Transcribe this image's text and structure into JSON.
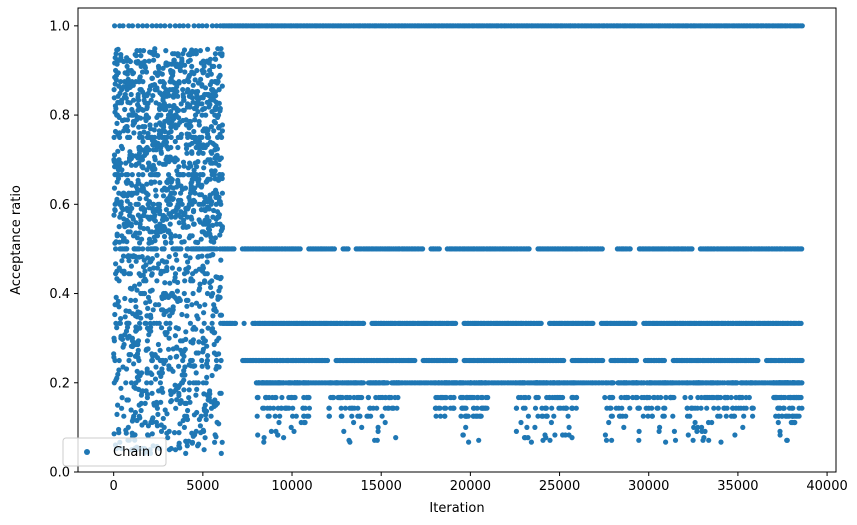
{
  "chart_data": {
    "type": "scatter",
    "xlabel": "Iteration",
    "ylabel": "Acceptance ratio",
    "xlim": [
      -2000,
      40500
    ],
    "ylim": [
      0.0,
      1.04
    ],
    "x_ticks": [
      0,
      5000,
      10000,
      15000,
      20000,
      25000,
      30000,
      35000,
      40000
    ],
    "x_tick_labels": [
      "0",
      "5000",
      "10000",
      "15000",
      "20000",
      "25000",
      "30000",
      "35000",
      "40000"
    ],
    "y_ticks": [
      0.0,
      0.2,
      0.4,
      0.6,
      0.8,
      1.0
    ],
    "y_tick_labels": [
      "0.0",
      "0.2",
      "0.4",
      "0.6",
      "0.8",
      "1.0"
    ],
    "grid": false,
    "legend_position": "lower-left",
    "series": [
      {
        "name": "Chain 0",
        "color": "#1f77b4",
        "marker": "circle",
        "x_range": [
          0,
          38600
        ],
        "burn_in_end": 6100,
        "burn_in_level_range": [
          0.04,
          0.95
        ],
        "levels": [
          1.0,
          0.5,
          0.333,
          0.25,
          0.2,
          0.167,
          0.143,
          0.125,
          0.111,
          0.1
        ],
        "level_segments": [
          {
            "y": 1.0,
            "x_start": 6100,
            "x_end": 38600
          },
          {
            "y": 0.5,
            "x_start": 6100,
            "x_end": 38600
          },
          {
            "y": 0.333,
            "x_start": 6100,
            "x_end": 38600
          },
          {
            "y": 0.25,
            "x_start": 7200,
            "x_end": 38600
          },
          {
            "y": 0.2,
            "x_start": 8000,
            "x_end": 38600
          }
        ],
        "clusters": [
          {
            "x_start": 8000,
            "x_end": 11000
          },
          {
            "x_start": 12000,
            "x_end": 16000
          },
          {
            "x_start": 18000,
            "x_end": 21000
          },
          {
            "x_start": 22500,
            "x_end": 26000
          },
          {
            "x_start": 27500,
            "x_end": 31500
          },
          {
            "x_start": 32000,
            "x_end": 36000
          },
          {
            "x_start": 37000,
            "x_end": 38600
          }
        ]
      }
    ]
  }
}
